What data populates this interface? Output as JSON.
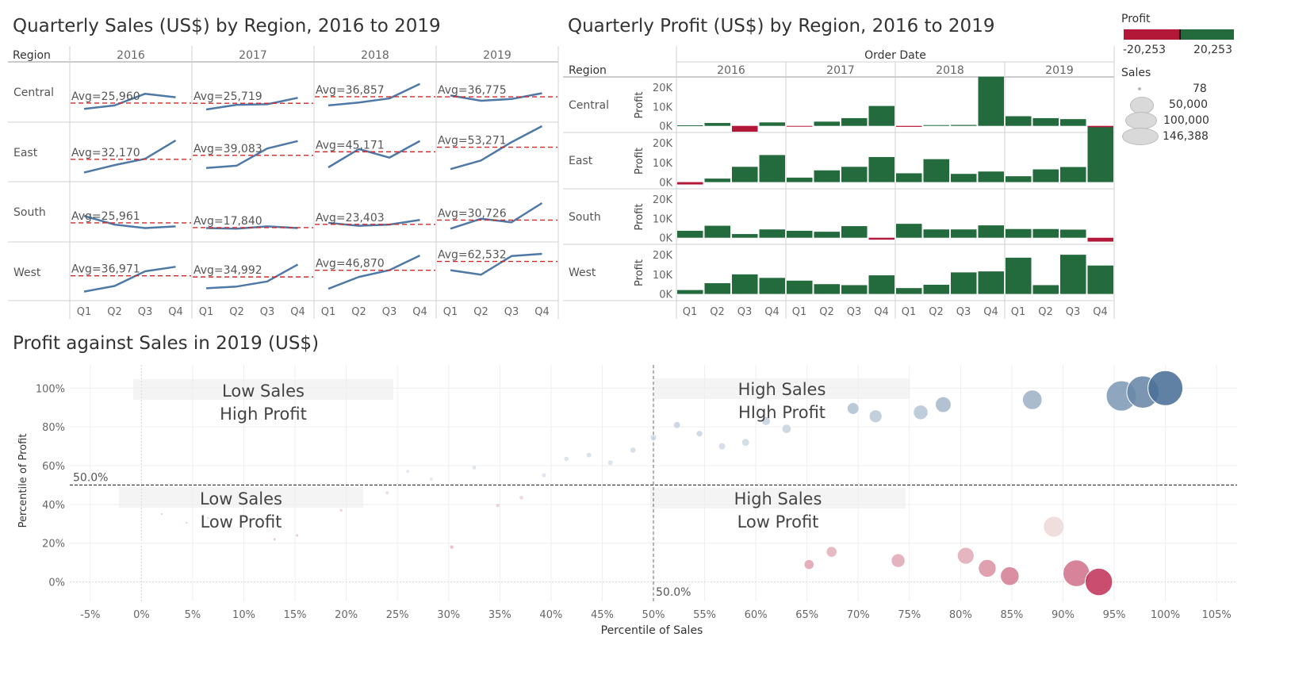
{
  "sales_panel": {
    "title": "Quarterly Sales (US$) by Region, 2016 to 2019",
    "region_header": "Region"
  },
  "profit_panel": {
    "title": "Quarterly Profit (US$) by Region, 2016 to 2019",
    "region_header": "Region",
    "order_date_header": "Order Date",
    "row_axis_label": "Profit"
  },
  "scatter_panel": {
    "title": "Profit against Sales in 2019 (US$)",
    "median_label_x": "50.0%",
    "median_label_y": "50.0%",
    "quadrants": [
      {
        "line1": "Low Sales",
        "line2": "High Profit"
      },
      {
        "line1": "High Sales",
        "line2": "HIgh Profit"
      },
      {
        "line1": "Low Sales",
        "line2": "Low Profit"
      },
      {
        "line1": "High Sales",
        "line2": "Low Profit"
      }
    ]
  },
  "legend": {
    "profit_title": "Profit",
    "profit_min_label": "-20,253",
    "profit_max_label": "20,253",
    "negative_color": "#b31838",
    "positive_color": "#236a3c",
    "sales_title": "Sales",
    "sales_sizes": [
      {
        "label": "78",
        "value": 78
      },
      {
        "label": "50,000",
        "value": 50000
      },
      {
        "label": "100,000",
        "value": 100000
      },
      {
        "label": "146,388",
        "value": 146388
      }
    ]
  },
  "chart_data": [
    {
      "type": "line",
      "title": "Quarterly Sales (US$) by Region, 2016 to 2019",
      "years": [
        "2016",
        "2017",
        "2018",
        "2019"
      ],
      "quarters": [
        "Q1",
        "Q2",
        "Q3",
        "Q4"
      ],
      "regions": [
        "Central",
        "East",
        "South",
        "West"
      ],
      "line_color": "#4e79a7",
      "avg_line_color": "#d62728",
      "ylim": [
        0,
        90000
      ],
      "series": [
        {
          "region": "Central",
          "years": [
            {
              "year": "2016",
              "values": [
                16000,
                22000,
                42000,
                36000
              ],
              "avg_label": "Avg=25,960",
              "avg": 25960
            },
            {
              "year": "2017",
              "values": [
                15000,
                23000,
                24000,
                35000
              ],
              "avg_label": "Avg=25,719",
              "avg": 25719
            },
            {
              "year": "2018",
              "values": [
                22000,
                27000,
                34000,
                59000
              ],
              "avg_label": "Avg=36,857",
              "avg": 36857
            },
            {
              "year": "2019",
              "values": [
                39000,
                30000,
                33000,
                43000
              ],
              "avg_label": "Avg=36,775",
              "avg": 36775
            }
          ]
        },
        {
          "region": "East",
          "years": [
            {
              "year": "2016",
              "values": [
                9000,
                22000,
                33000,
                65000
              ],
              "avg_label": "Avg=32,170",
              "avg": 32170
            },
            {
              "year": "2017",
              "values": [
                17000,
                21000,
                51000,
                64000
              ],
              "avg_label": "Avg=39,083",
              "avg": 39083
            },
            {
              "year": "2018",
              "values": [
                18000,
                50000,
                35000,
                64000
              ],
              "avg_label": "Avg=45,171",
              "avg": 45171
            },
            {
              "year": "2019",
              "values": [
                15000,
                30000,
                62000,
                90000
              ],
              "avg_label": "Avg=53,271",
              "avg": 53271
            }
          ]
        },
        {
          "region": "South",
          "years": [
            {
              "year": "2016",
              "values": [
                38000,
                23000,
                17000,
                20000
              ],
              "avg_label": "Avg=25,961",
              "avg": 25961
            },
            {
              "year": "2017",
              "values": [
                17000,
                16000,
                20000,
                17000
              ],
              "avg_label": "Avg=17,840",
              "avg": 17840
            },
            {
              "year": "2018",
              "values": [
                26000,
                21000,
                23000,
                31000
              ],
              "avg_label": "Avg=23,403",
              "avg": 23403
            },
            {
              "year": "2019",
              "values": [
                16000,
                33000,
                27000,
                60000
              ],
              "avg_label": "Avg=30,726",
              "avg": 30726
            }
          ]
        },
        {
          "region": "West",
          "years": [
            {
              "year": "2016",
              "values": [
                9000,
                19000,
                45000,
                53000
              ],
              "avg_label": "Avg=36,971",
              "avg": 36971
            },
            {
              "year": "2017",
              "values": [
                15000,
                18000,
                27000,
                57000
              ],
              "avg_label": "Avg=34,992",
              "avg": 34992
            },
            {
              "year": "2018",
              "values": [
                14000,
                35000,
                47000,
                73000
              ],
              "avg_label": "Avg=46,870",
              "avg": 46870
            },
            {
              "year": "2019",
              "values": [
                47000,
                39000,
                72000,
                76000
              ],
              "avg_label": "Avg=62,532",
              "avg": 62532
            }
          ]
        }
      ]
    },
    {
      "type": "bar",
      "title": "Quarterly Profit (US$) by Region, 2016 to 2019",
      "years": [
        "2016",
        "2017",
        "2018",
        "2019"
      ],
      "quarters": [
        "Q1",
        "Q2",
        "Q3",
        "Q4"
      ],
      "regions": [
        "Central",
        "East",
        "South",
        "West"
      ],
      "ylabel": "Profit",
      "yticks": [
        0,
        10000,
        20000
      ],
      "ytick_labels": [
        "0K",
        "10K",
        "20K"
      ],
      "ylim": [
        -3000,
        24500
      ],
      "series": [
        {
          "region": "Central",
          "values": [
            300,
            1500,
            -3000,
            1800,
            -400,
            2200,
            4000,
            10300,
            -500,
            400,
            500,
            25500,
            5000,
            4000,
            3500,
            -3000
          ]
        },
        {
          "region": "East",
          "values": [
            -1200,
            1800,
            7800,
            13800,
            2300,
            6000,
            7800,
            12800,
            4500,
            11700,
            4200,
            5400,
            3000,
            6500,
            7700,
            28000
          ]
        },
        {
          "region": "South",
          "values": [
            3600,
            6200,
            1900,
            4300,
            3600,
            3100,
            6000,
            -1000,
            7200,
            4300,
            4300,
            6400,
            4500,
            4500,
            4200,
            -2000
          ]
        },
        {
          "region": "West",
          "values": [
            2000,
            5500,
            10000,
            8200,
            6800,
            5000,
            4500,
            9500,
            3000,
            4700,
            11000,
            11500,
            18500,
            4500,
            20000,
            14500
          ]
        }
      ]
    },
    {
      "type": "scatter",
      "title": "Profit against Sales in 2019 (US$)",
      "xlabel": "Percentile of Sales",
      "ylabel": "Percentile of Profit",
      "xlim": [
        -0.07,
        1.07
      ],
      "ylim": [
        -0.1,
        1.12
      ],
      "xticks": [
        -0.05,
        0,
        0.05,
        0.1,
        0.15,
        0.2,
        0.25,
        0.3,
        0.35,
        0.4,
        0.45,
        0.5,
        0.55,
        0.6,
        0.65,
        0.7,
        0.75,
        0.8,
        0.85,
        0.9,
        0.95,
        1.0,
        1.05
      ],
      "xtick_labels": [
        "-5%",
        "0%",
        "5%",
        "10%",
        "15%",
        "20%",
        "25%",
        "30%",
        "35%",
        "40%",
        "45%",
        "50%",
        "55%",
        "60%",
        "65%",
        "70%",
        "75%",
        "80%",
        "85%",
        "90%",
        "95%",
        "100%",
        "105%"
      ],
      "yticks": [
        0,
        0.2,
        0.4,
        0.6,
        0.8,
        1.0
      ],
      "ytick_labels": [
        "0%",
        "20%",
        "40%",
        "60%",
        "80%",
        "100%"
      ],
      "median_x": 0.5,
      "median_y": 0.5,
      "points": [
        {
          "x": 0.02,
          "y": 0.35,
          "sales": 200,
          "profit": -200
        },
        {
          "x": 0.044,
          "y": 0.305,
          "sales": 300,
          "profit": -300
        },
        {
          "x": 0.065,
          "y": 0.33,
          "sales": 400,
          "profit": -250
        },
        {
          "x": 0.13,
          "y": 0.22,
          "sales": 600,
          "profit": -400
        },
        {
          "x": 0.152,
          "y": 0.24,
          "sales": 700,
          "profit": -350
        },
        {
          "x": 0.195,
          "y": 0.37,
          "sales": 900,
          "profit": -150
        },
        {
          "x": 0.24,
          "y": 0.46,
          "sales": 1200,
          "profit": -50
        },
        {
          "x": 0.26,
          "y": 0.57,
          "sales": 1300,
          "profit": 50
        },
        {
          "x": 0.283,
          "y": 0.53,
          "sales": 1400,
          "profit": 20
        },
        {
          "x": 0.303,
          "y": 0.18,
          "sales": 1500,
          "profit": -600
        },
        {
          "x": 0.325,
          "y": 0.59,
          "sales": 1600,
          "profit": 100
        },
        {
          "x": 0.348,
          "y": 0.395,
          "sales": 1700,
          "profit": -100
        },
        {
          "x": 0.371,
          "y": 0.435,
          "sales": 1800,
          "profit": -60
        },
        {
          "x": 0.393,
          "y": 0.55,
          "sales": 2000,
          "profit": 60
        },
        {
          "x": 0.415,
          "y": 0.635,
          "sales": 2300,
          "profit": 150
        },
        {
          "x": 0.437,
          "y": 0.655,
          "sales": 2600,
          "profit": 180
        },
        {
          "x": 0.458,
          "y": 0.615,
          "sales": 2900,
          "profit": 130
        },
        {
          "x": 0.48,
          "y": 0.68,
          "sales": 3300,
          "profit": 250
        },
        {
          "x": 0.5,
          "y": 0.745,
          "sales": 3700,
          "profit": 400
        },
        {
          "x": 0.523,
          "y": 0.81,
          "sales": 4500,
          "profit": 550
        },
        {
          "x": 0.545,
          "y": 0.765,
          "sales": 5200,
          "profit": 450
        },
        {
          "x": 0.567,
          "y": 0.7,
          "sales": 6200,
          "profit": 300
        },
        {
          "x": 0.59,
          "y": 0.72,
          "sales": 7500,
          "profit": 340
        },
        {
          "x": 0.61,
          "y": 0.83,
          "sales": 9000,
          "profit": 700
        },
        {
          "x": 0.63,
          "y": 0.79,
          "sales": 10500,
          "profit": 520
        },
        {
          "x": 0.652,
          "y": 0.09,
          "sales": 12000,
          "profit": -1500
        },
        {
          "x": 0.674,
          "y": 0.155,
          "sales": 14000,
          "profit": -1000
        },
        {
          "x": 0.695,
          "y": 0.895,
          "sales": 17000,
          "profit": 1600
        },
        {
          "x": 0.717,
          "y": 0.855,
          "sales": 20000,
          "profit": 1100
        },
        {
          "x": 0.739,
          "y": 0.11,
          "sales": 23000,
          "profit": -1300
        },
        {
          "x": 0.761,
          "y": 0.875,
          "sales": 26000,
          "profit": 1300
        },
        {
          "x": 0.783,
          "y": 0.915,
          "sales": 30000,
          "profit": 2300
        },
        {
          "x": 0.805,
          "y": 0.135,
          "sales": 34000,
          "profit": -1200
        },
        {
          "x": 0.826,
          "y": 0.07,
          "sales": 38000,
          "profit": -2500
        },
        {
          "x": 0.848,
          "y": 0.03,
          "sales": 42000,
          "profit": -4000
        },
        {
          "x": 0.87,
          "y": 0.94,
          "sales": 46000,
          "profit": 3000
        },
        {
          "x": 0.891,
          "y": 0.285,
          "sales": 52000,
          "profit": -30
        },
        {
          "x": 0.913,
          "y": 0.045,
          "sales": 85000,
          "profit": -5000
        },
        {
          "x": 0.935,
          "y": 0.0,
          "sales": 90000,
          "profit": -12000
        },
        {
          "x": 0.957,
          "y": 0.96,
          "sales": 110000,
          "profit": 6000
        },
        {
          "x": 0.978,
          "y": 0.98,
          "sales": 125000,
          "profit": 9000
        },
        {
          "x": 1.0,
          "y": 1.0,
          "sales": 146388,
          "profit": 14000
        }
      ]
    }
  ]
}
